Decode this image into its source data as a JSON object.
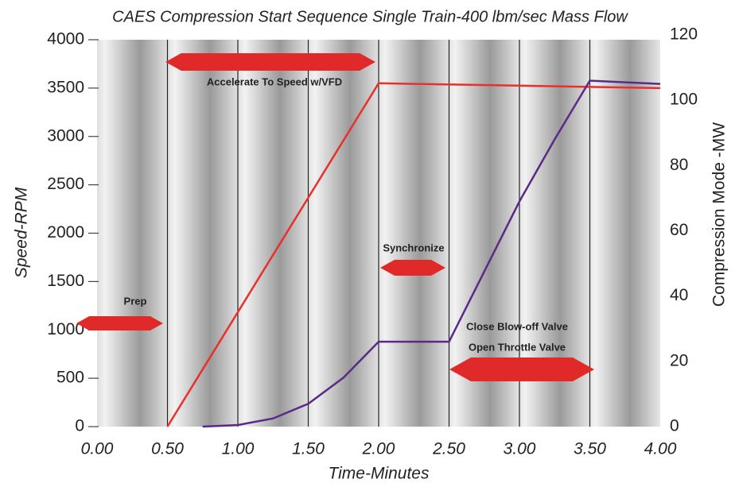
{
  "chart_data": {
    "type": "line",
    "title": "CAES Compression Start Sequence Single Train-400 lbm/sec Mass Flow",
    "xlabel": "Time-Minutes",
    "ylabel": "Speed-RPM",
    "y2label": "Compression Mode -MW",
    "xlim": [
      0,
      4
    ],
    "xticks": [
      {
        "value": 0,
        "label": "0.00"
      },
      {
        "value": 0.5,
        "label": "0.50"
      },
      {
        "value": 1,
        "label": "1.00"
      },
      {
        "value": 1.5,
        "label": "1.50"
      },
      {
        "value": 2,
        "label": "2.00"
      },
      {
        "value": 2.5,
        "label": "2.50"
      },
      {
        "value": 3,
        "label": "3.00"
      },
      {
        "value": 3.5,
        "label": "3.50"
      },
      {
        "value": 4,
        "label": "4.00"
      }
    ],
    "ylim": [
      0,
      4000
    ],
    "yticks": [
      0,
      500,
      1000,
      1500,
      2000,
      2500,
      3000,
      3500,
      4000
    ],
    "y2lim": [
      0,
      120
    ],
    "y2ticks": [
      0,
      20,
      40,
      60,
      80,
      100,
      120
    ],
    "grid": true,
    "series": [
      {
        "color": "#e8302c",
        "x": [
          0.5,
          2.0,
          4.0
        ],
        "values": [
          0,
          3550,
          3500
        ]
      },
      {
        "color": "#5b2a86",
        "axis": "y2",
        "x": [
          0.75,
          1.0,
          1.25,
          1.5,
          1.75,
          2.0,
          2.5,
          3.0,
          3.25,
          3.5,
          4.0
        ],
        "values": [
          0,
          0.5,
          2.5,
          7,
          15,
          26,
          26,
          69,
          88,
          106,
          105
        ]
      }
    ],
    "annotations": [
      "Prep",
      "Accelerate To Speed w/VFD",
      "Synchronize",
      "Close Blow-off Valve",
      "Open Throttle Valve"
    ]
  }
}
